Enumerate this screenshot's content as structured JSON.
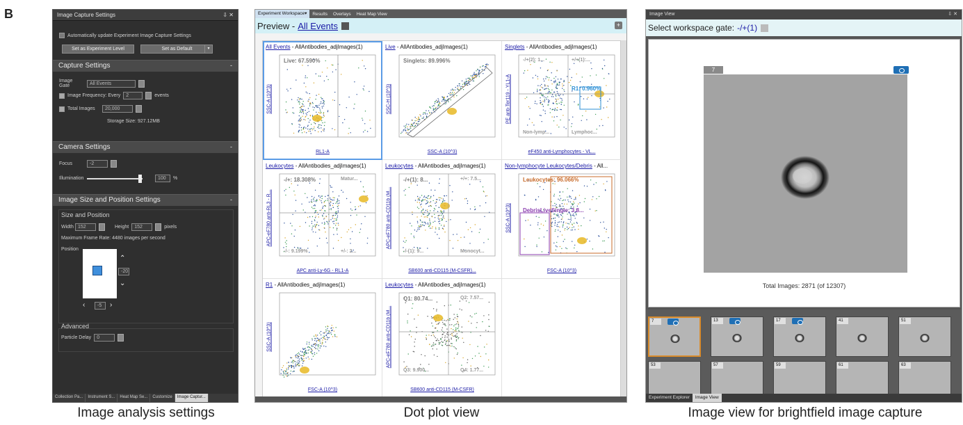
{
  "figure_letter": "B",
  "captions": {
    "left": "Image analysis settings",
    "middle": "Dot plot view",
    "right": "Image view for brightfield image capture"
  },
  "settings_panel": {
    "title": "Image Capture Settings",
    "window_controls": "⇩ ✕",
    "auto_update_label": "Automatically update Experiment Image Capture Settings",
    "set_experiment_level": "Set as Experiment Level",
    "set_default": "Set as Default",
    "capture_header": "Capture Settings",
    "image_gate_label": "Image Gate",
    "image_gate_value": "All Events",
    "freq_label": "Image Frequency: Every",
    "freq_value": "2",
    "freq_unit": "events",
    "total_images_label": "Total Images",
    "total_images_value": "20,000",
    "storage_size": "Storage Size: 927.12MB",
    "camera_header": "Camera Settings",
    "focus_label": "Focus",
    "focus_value": "-2",
    "illumination_label": "Illumination",
    "illumination_value": "100",
    "illumination_unit": "%",
    "size_header": "Image Size and Position Settings",
    "size_pos_title": "Size and Position",
    "width_label": "Width",
    "width_value": "152",
    "height_label": "Height",
    "height_value": "152",
    "pixels_label": "pixels",
    "max_frame_rate": "Maximum Frame Rate: 4480 images per second",
    "position_label": "Position",
    "pos_v_value": "-20",
    "pos_h_value": "-5",
    "advanced_title": "Advanced",
    "particle_delay_label": "Particle Delay",
    "particle_delay_value": "0",
    "bottom_tabs": [
      "Collection Pa...",
      "Instrument S...",
      "Heat Map Se...",
      "Customize",
      "Image Captur..."
    ]
  },
  "workspace": {
    "tabs": [
      "Experiment Workspace▾",
      "Results",
      "Overlays",
      "Heat Map View"
    ],
    "preview_label": "Preview -",
    "preview_link": "All Events",
    "plots": [
      {
        "gate": "All Events",
        "rest": " - AllAntibodies_adjImages(1)",
        "stat": "Live: 67.590%",
        "xl": "RL1-A",
        "yl": "SSC-A (10^3)"
      },
      {
        "gate": "Live",
        "rest": " - AllAntibodies_adjImages(1)",
        "stat": "Singlets: 89.996%",
        "xl": "SSC-A (10^3)",
        "yl": "SSC-H (10^3)"
      },
      {
        "gate": "Singlets",
        "rest": " - AllAntibodies_adjImages(1)",
        "stat": "R1: 0.960%",
        "xl": "eF450 anti-Lymphocytes - VL...",
        "yl": "PE anti-Ter119 - YL1-A"
      },
      {
        "gate": "Leukocytes",
        "rest": " - AllAntibodies_adjImages(1)",
        "stat": "-/+: 18.308%",
        "xl": "APC anti-Ly-6G - RL1-A",
        "yl": "APC-eF780 anti-RL3 - R..."
      },
      {
        "gate": "Leukocytes",
        "rest": " - AllAntibodies_adjImages(1)",
        "stat": "-/+(1): 8...",
        "xl": "SB600 anti-CD115 (M-CSFR)...",
        "yl": "APC-eF780 anti-CD11b (M..."
      },
      {
        "gate": "Non-lymphocyte Leukocytes/Debris",
        "rest": " - All...",
        "stat": "Leukocytes: 96.066%",
        "xl": "FSC-A (10^3)",
        "yl": "SSC-A (10^3)"
      },
      {
        "gate": "R1",
        "rest": " - AllAntibodies_adjImages(1)",
        "stat": "",
        "xl": "FSC-A (10^3)",
        "yl": "SSC-A (10^3)"
      },
      {
        "gate": "Leukocytes",
        "rest": " - AllAntibodies_adjImages(1)",
        "stat": "Q1: 80.74...",
        "xl": "SB600 anti-CD115 (M-CSFR)",
        "yl": "APC-eF780 anti-CD11b (M..."
      }
    ],
    "plot_extra": {
      "p3_q1": "-/+(2): 1...",
      "p3_q2": "+/+(1):...",
      "p3_q3": "Non-lymp...",
      "p3_q4": "Lymphoc...",
      "p4_q2": "Matur...",
      "p4_q3": "-/-: 9.199%",
      "p4_q4": "+/-: 2...",
      "p5_q2": "+/+: 7.5...",
      "p5_q3": "-/-(1): 9...",
      "p5_q4": "Monocyt...",
      "p6_sub": "DebrisLiveSingle: 3.8...",
      "p8_q2": "Q2: 7.57...",
      "p8_q3": "Q3: 9.900...",
      "p8_q4": "Q4: 1.77..."
    }
  },
  "image_view": {
    "title": "Image View",
    "window_controls": "⇩ ✕",
    "gate_label": "Select workspace gate:",
    "gate_value": "-/+(1)",
    "event_number": "7",
    "total_images": "Total Images: 2871 (of 12307)",
    "thumbs": [
      "7",
      "13",
      "17",
      "41",
      "51",
      "53",
      "57",
      "59",
      "61",
      "63"
    ],
    "tabs": [
      "Experiment Explorer",
      "Image View"
    ]
  }
}
